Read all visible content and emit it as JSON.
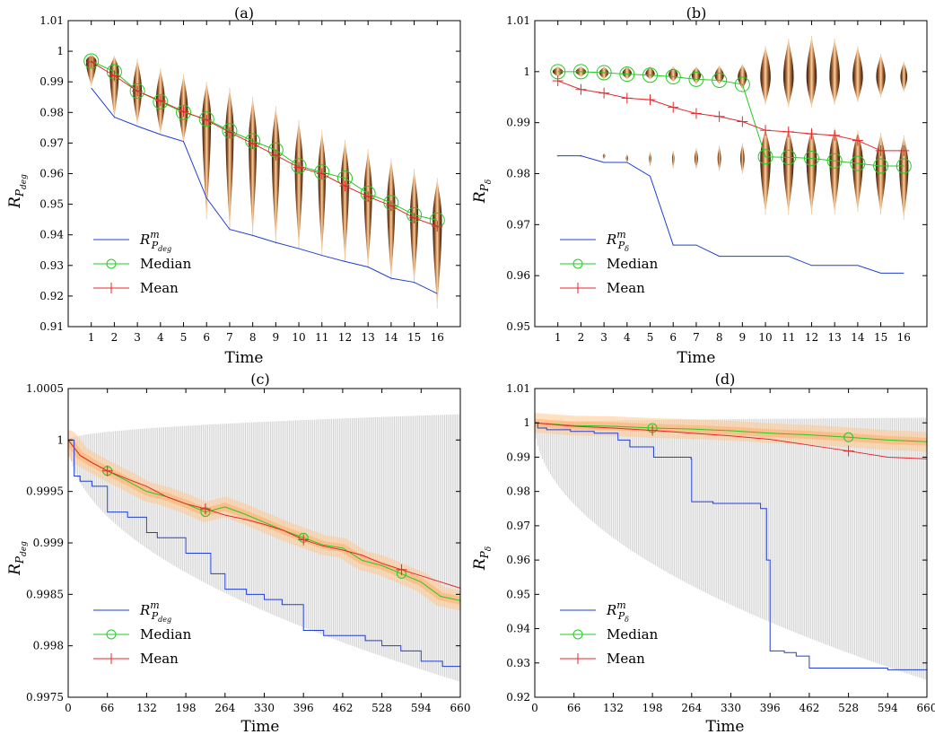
{
  "chart_data": [
    {
      "type": "violin",
      "panel_label": "(a)",
      "xlabel": "Time",
      "ylabel": "R_{P_deg}",
      "ylim": [
        0.91,
        1.01
      ],
      "yticks": [
        "0.91",
        "0.92",
        "0.93",
        "0.94",
        "0.95",
        "0.96",
        "0.97",
        "0.98",
        "0.99",
        "1",
        "1.01"
      ],
      "categories": [
        "1",
        "2",
        "3",
        "4",
        "5",
        "6",
        "7",
        "8",
        "9",
        "10",
        "11",
        "12",
        "13",
        "14",
        "15",
        "16"
      ],
      "legend": [
        "Median",
        "Mean"
      ],
      "legend_position": "bottom-left",
      "series": [
        {
          "key": "rm",
          "color": "#1f3fd6",
          "values": [
            0.988,
            0.9785,
            0.9755,
            0.9728,
            0.9705,
            0.952,
            0.9418,
            0.9398,
            0.9375,
            0.9355,
            0.9333,
            0.9313,
            0.9295,
            0.9258,
            0.9245,
            0.9208
          ]
        },
        {
          "key": "median",
          "name": "Median",
          "color": "#22cc22",
          "values": [
            0.9968,
            0.9933,
            0.987,
            0.9835,
            0.98,
            0.9778,
            0.974,
            0.9707,
            0.9677,
            0.9625,
            0.9605,
            0.9585,
            0.9535,
            0.9505,
            0.9465,
            0.9448
          ]
        },
        {
          "key": "mean",
          "name": "Mean",
          "color": "#e8262b",
          "values": [
            0.9965,
            0.992,
            0.987,
            0.9838,
            0.9803,
            0.9775,
            0.9735,
            0.9698,
            0.966,
            0.962,
            0.96,
            0.956,
            0.9525,
            0.9495,
            0.9455,
            0.9428
          ]
        }
      ],
      "violins": [
        {
          "center": 0.9968,
          "lo": 0.9885,
          "hi": 0.999,
          "w": 0.45
        },
        {
          "center": 0.9935,
          "lo": 0.978,
          "hi": 0.9985,
          "w": 0.4
        },
        {
          "center": 0.9875,
          "lo": 0.976,
          "hi": 0.9975,
          "w": 0.38
        },
        {
          "center": 0.984,
          "lo": 0.973,
          "hi": 0.9945,
          "w": 0.38
        },
        {
          "center": 0.981,
          "lo": 0.97,
          "hi": 0.9925,
          "w": 0.38
        },
        {
          "center": 0.9785,
          "lo": 0.945,
          "hi": 0.99,
          "w": 0.38
        },
        {
          "center": 0.9745,
          "lo": 0.941,
          "hi": 0.988,
          "w": 0.35
        },
        {
          "center": 0.971,
          "lo": 0.9395,
          "hi": 0.985,
          "w": 0.35
        },
        {
          "center": 0.9675,
          "lo": 0.937,
          "hi": 0.982,
          "w": 0.35
        },
        {
          "center": 0.963,
          "lo": 0.9355,
          "hi": 0.9775,
          "w": 0.35
        },
        {
          "center": 0.9605,
          "lo": 0.933,
          "hi": 0.974,
          "w": 0.33
        },
        {
          "center": 0.958,
          "lo": 0.931,
          "hi": 0.971,
          "w": 0.35
        },
        {
          "center": 0.954,
          "lo": 0.929,
          "hi": 0.968,
          "w": 0.35
        },
        {
          "center": 0.951,
          "lo": 0.925,
          "hi": 0.965,
          "w": 0.35
        },
        {
          "center": 0.947,
          "lo": 0.924,
          "hi": 0.9615,
          "w": 0.35
        },
        {
          "center": 0.945,
          "lo": 0.916,
          "hi": 0.9585,
          "w": 0.4
        }
      ]
    },
    {
      "type": "violin",
      "panel_label": "(b)",
      "xlabel": "Time",
      "ylabel": "R_{P_δ}",
      "ylim": [
        0.95,
        1.01
      ],
      "yticks": [
        "0.95",
        "0.96",
        "0.97",
        "0.98",
        "0.99",
        "1",
        "1.01"
      ],
      "categories": [
        "1",
        "2",
        "3",
        "4",
        "5",
        "6",
        "7",
        "8",
        "9",
        "10",
        "11",
        "12",
        "13",
        "14",
        "15",
        "16"
      ],
      "legend": [
        "Median",
        "Mean"
      ],
      "legend_position": "bottom-left",
      "series": [
        {
          "key": "rm",
          "color": "#1f3fd6",
          "values": [
            0.9835,
            0.9835,
            0.9822,
            0.9822,
            0.9795,
            0.966,
            0.966,
            0.9638,
            0.9638,
            0.9638,
            0.9638,
            0.962,
            0.962,
            0.962,
            0.9605,
            0.9605
          ]
        },
        {
          "key": "median",
          "name": "Median",
          "color": "#22cc22",
          "values": [
            1.0,
            1.0,
            0.9998,
            0.9995,
            0.9993,
            0.999,
            0.9985,
            0.9983,
            0.9975,
            0.9833,
            0.9832,
            0.983,
            0.9825,
            0.982,
            0.9815,
            0.9815
          ]
        },
        {
          "key": "mean",
          "name": "Mean",
          "color": "#e8262b",
          "values": [
            0.9982,
            0.9965,
            0.9958,
            0.9948,
            0.9945,
            0.993,
            0.9918,
            0.9912,
            0.9902,
            0.9885,
            0.9882,
            0.9878,
            0.9875,
            0.9865,
            0.9845,
            0.9845
          ]
        }
      ],
      "violins": [
        {
          "center": 1.0,
          "lo": 0.999,
          "hi": 1.001,
          "w": 0.45
        },
        {
          "center": 1.0,
          "lo": 0.999,
          "hi": 1.001,
          "w": 0.45
        },
        {
          "center": 0.9998,
          "lo": 0.9985,
          "hi": 1.001,
          "w": 0.4
        },
        {
          "center": 0.9997,
          "lo": 0.9985,
          "hi": 1.001,
          "w": 0.4
        },
        {
          "center": 0.9996,
          "lo": 0.9985,
          "hi": 1.001,
          "w": 0.4
        },
        {
          "center": 0.9994,
          "lo": 0.998,
          "hi": 1.001,
          "w": 0.4
        },
        {
          "center": 0.9993,
          "lo": 0.9975,
          "hi": 1.001,
          "w": 0.4
        },
        {
          "center": 0.9992,
          "lo": 0.9975,
          "hi": 1.0012,
          "w": 0.4
        },
        {
          "center": 0.999,
          "lo": 0.9965,
          "hi": 1.0015,
          "w": 0.4
        },
        {
          "center": 0.999,
          "lo": 0.9935,
          "hi": 1.005,
          "w": 0.45
        },
        {
          "center": 0.999,
          "lo": 0.993,
          "hi": 1.0065,
          "w": 0.45
        },
        {
          "center": 0.999,
          "lo": 0.993,
          "hi": 1.007,
          "w": 0.45
        },
        {
          "center": 0.999,
          "lo": 0.9935,
          "hi": 1.0065,
          "w": 0.45
        },
        {
          "center": 0.999,
          "lo": 0.994,
          "hi": 1.005,
          "w": 0.45
        },
        {
          "center": 0.999,
          "lo": 0.995,
          "hi": 1.0035,
          "w": 0.4
        },
        {
          "center": 0.999,
          "lo": 0.996,
          "hi": 1.002,
          "w": 0.3
        }
      ],
      "violins_low": [
        {
          "center": 0.9835,
          "lo": 0.9833,
          "hi": 0.9837,
          "w": 0.08
        },
        {
          "center": 0.9835,
          "lo": 0.9833,
          "hi": 0.9837,
          "w": 0.08
        },
        {
          "center": 0.9835,
          "lo": 0.9828,
          "hi": 0.984,
          "w": 0.1
        },
        {
          "center": 0.983,
          "lo": 0.9822,
          "hi": 0.9838,
          "w": 0.1
        },
        {
          "center": 0.983,
          "lo": 0.9815,
          "hi": 0.9842,
          "w": 0.1
        },
        {
          "center": 0.983,
          "lo": 0.981,
          "hi": 0.9845,
          "w": 0.1
        },
        {
          "center": 0.983,
          "lo": 0.981,
          "hi": 0.985,
          "w": 0.15
        },
        {
          "center": 0.983,
          "lo": 0.9805,
          "hi": 0.9855,
          "w": 0.15
        },
        {
          "center": 0.983,
          "lo": 0.98,
          "hi": 0.986,
          "w": 0.18
        },
        {
          "center": 0.983,
          "lo": 0.972,
          "hi": 0.989,
          "w": 0.45
        },
        {
          "center": 0.983,
          "lo": 0.972,
          "hi": 0.989,
          "w": 0.45
        },
        {
          "center": 0.983,
          "lo": 0.972,
          "hi": 0.989,
          "w": 0.45
        },
        {
          "center": 0.983,
          "lo": 0.972,
          "hi": 0.989,
          "w": 0.45
        },
        {
          "center": 0.9825,
          "lo": 0.9725,
          "hi": 0.9885,
          "w": 0.45
        },
        {
          "center": 0.9815,
          "lo": 0.972,
          "hi": 0.988,
          "w": 0.45
        },
        {
          "center": 0.9815,
          "lo": 0.971,
          "hi": 0.9875,
          "w": 0.4
        }
      ]
    },
    {
      "type": "line",
      "panel_label": "(c)",
      "xlabel": "Time",
      "ylabel": "R_{P_deg}",
      "xlim": [
        0,
        660
      ],
      "ylim": [
        0.9975,
        1.0005
      ],
      "xticks": [
        "0",
        "66",
        "132",
        "198",
        "264",
        "330",
        "396",
        "462",
        "528",
        "594",
        "660"
      ],
      "yticks": [
        "0.9975",
        "0.998",
        "0.9985",
        "0.999",
        "0.9995",
        "1",
        "1.0005"
      ],
      "legend": [
        "Median",
        "Mean"
      ],
      "legend_position": "bottom-left",
      "series": [
        {
          "key": "rm",
          "color": "#1f3fd6",
          "x": [
            0,
            10,
            20,
            40,
            66,
            100,
            132,
            150,
            198,
            240,
            264,
            300,
            330,
            360,
            396,
            430,
            462,
            500,
            528,
            560,
            594,
            630,
            660
          ],
          "y": [
            1.0,
            0.99965,
            0.9996,
            0.99955,
            0.9993,
            0.99925,
            0.9991,
            0.99905,
            0.9989,
            0.9987,
            0.99855,
            0.9985,
            0.99845,
            0.9984,
            0.99815,
            0.9981,
            0.9981,
            0.99805,
            0.998,
            0.99795,
            0.99785,
            0.9978,
            0.99778
          ]
        },
        {
          "key": "median",
          "name": "Median",
          "color": "#22cc22",
          "x": [
            0,
            20,
            40,
            66,
            100,
            132,
            165,
            198,
            231,
            264,
            297,
            330,
            363,
            396,
            429,
            462,
            495,
            528,
            561,
            594,
            627,
            660
          ],
          "y": [
            1.0,
            0.99985,
            0.99978,
            0.9997,
            0.9996,
            0.9995,
            0.99945,
            0.99938,
            0.9993,
            0.99935,
            0.99928,
            0.9992,
            0.99912,
            0.99905,
            0.99898,
            0.99895,
            0.99883,
            0.99878,
            0.9987,
            0.99862,
            0.99848,
            0.99844
          ]
        },
        {
          "key": "mean",
          "name": "Mean",
          "color": "#e8262b",
          "x": [
            0,
            20,
            40,
            66,
            100,
            132,
            165,
            198,
            231,
            264,
            297,
            330,
            363,
            396,
            429,
            462,
            495,
            528,
            561,
            594,
            627,
            660
          ],
          "y": [
            1.0,
            0.99985,
            0.99978,
            0.9997,
            0.99962,
            0.99955,
            0.99945,
            0.99938,
            0.99933,
            0.99927,
            0.99923,
            0.99918,
            0.99912,
            0.99903,
            0.99897,
            0.99893,
            0.99888,
            0.9988,
            0.99874,
            0.99868,
            0.99862,
            0.99856
          ]
        }
      ],
      "band": {
        "hi_start": 1.0,
        "hi_end": 1.00025,
        "lo_start": 1.0,
        "lo_end": 0.99765
      }
    },
    {
      "type": "line",
      "panel_label": "(d)",
      "xlabel": "Time",
      "ylabel": "R_{P_δ}",
      "xlim": [
        0,
        660
      ],
      "ylim": [
        0.92,
        1.01
      ],
      "xticks": [
        "0",
        "66",
        "132",
        "198",
        "264",
        "330",
        "396",
        "462",
        "528",
        "594",
        "660"
      ],
      "yticks": [
        "0.92",
        "0.93",
        "0.94",
        "0.95",
        "0.96",
        "0.97",
        "0.98",
        "0.99",
        "1",
        "1.01"
      ],
      "legend": [
        "Median",
        "Mean"
      ],
      "legend_position": "bottom-left",
      "series": [
        {
          "key": "rm",
          "color": "#1f3fd6",
          "x": [
            0,
            5,
            20,
            60,
            100,
            140,
            160,
            200,
            263,
            264,
            300,
            380,
            386,
            390,
            396,
            420,
            440,
            462,
            528,
            594,
            660
          ],
          "y": [
            1.0,
            0.9985,
            0.998,
            0.9975,
            0.997,
            0.995,
            0.993,
            0.99,
            0.9895,
            0.977,
            0.9765,
            0.975,
            0.975,
            0.96,
            0.9335,
            0.933,
            0.932,
            0.9285,
            0.9285,
            0.928,
            0.9275
          ]
        },
        {
          "key": "median",
          "name": "Median",
          "color": "#22cc22",
          "x": [
            0,
            66,
            132,
            198,
            264,
            330,
            396,
            462,
            528,
            594,
            660
          ],
          "y": [
            1.0,
            0.9992,
            0.999,
            0.9985,
            0.9982,
            0.9977,
            0.997,
            0.9965,
            0.9958,
            0.995,
            0.9945
          ]
        },
        {
          "key": "mean",
          "name": "Mean",
          "color": "#e8262b",
          "x": [
            0,
            66,
            132,
            198,
            264,
            330,
            396,
            462,
            528,
            594,
            660
          ],
          "y": [
            1.0,
            0.999,
            0.9985,
            0.9978,
            0.997,
            0.9962,
            0.9952,
            0.9935,
            0.9918,
            0.99,
            0.9895
          ]
        }
      ],
      "band": {
        "hi_start": 1.0,
        "hi_end": 1.0015,
        "lo_start": 1.0,
        "lo_end": 0.925
      }
    }
  ]
}
